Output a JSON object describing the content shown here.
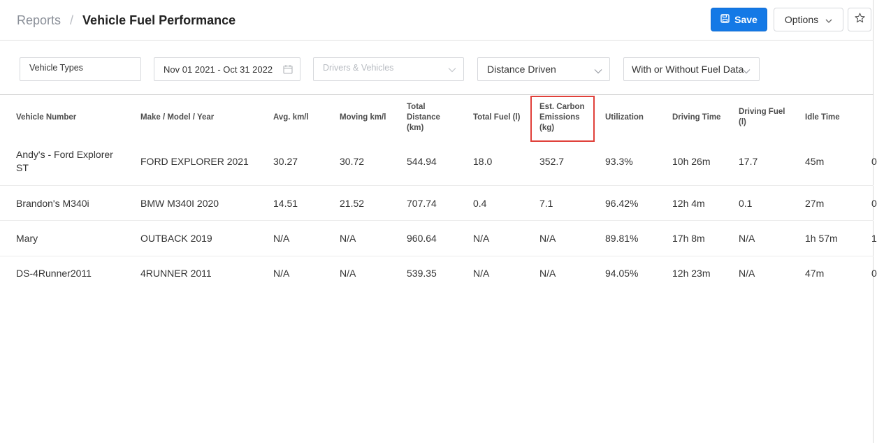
{
  "header": {
    "breadcrumb_parent": "Reports",
    "breadcrumb_separator": "/",
    "title": "Vehicle Fuel Performance",
    "save_label": "Save",
    "options_label": "Options"
  },
  "filters": {
    "vehicle_types": "Vehicle Types",
    "date_range": "Nov 01 2021 - Oct 31 2022",
    "drivers_vehicles_placeholder": "Drivers & Vehicles",
    "distance": "Distance Driven",
    "fuel_data": "With or Without Fuel Data"
  },
  "table": {
    "columns": [
      [
        "Vehicle Number"
      ],
      [
        "Make / Model / Year"
      ],
      [
        "Avg. km/l"
      ],
      [
        "Moving km/l"
      ],
      [
        "Total",
        "Distance",
        "(km)"
      ],
      [
        "Total Fuel (l)"
      ],
      [
        "Est. Carbon",
        "Emissions",
        "(kg)"
      ],
      [
        "Utilization"
      ],
      [
        "Driving Time"
      ],
      [
        "Driving Fuel",
        "(l)"
      ],
      [
        "Idle Time"
      ],
      [
        ""
      ]
    ],
    "rows": [
      {
        "vehicle": [
          "Andy's - Ford Explorer",
          "ST"
        ],
        "make": "FORD EXPLORER 2021",
        "avg": "30.27",
        "moving": "30.72",
        "distance": "544.94",
        "fuel": "18.0",
        "carbon": "352.7",
        "util": "93.3%",
        "driving_time": "10h 26m",
        "driving_fuel": "17.7",
        "idle": "45m",
        "extra": "0"
      },
      {
        "vehicle": [
          "Brandon's M340i"
        ],
        "make": "BMW M340I 2020",
        "avg": "14.51",
        "moving": "21.52",
        "distance": "707.74",
        "fuel": "0.4",
        "carbon": "7.1",
        "util": "96.42%",
        "driving_time": "12h 4m",
        "driving_fuel": "0.1",
        "idle": "27m",
        "extra": "0"
      },
      {
        "vehicle": [
          "Mary"
        ],
        "make": "OUTBACK 2019",
        "avg": "N/A",
        "moving": "N/A",
        "distance": "960.64",
        "fuel": "N/A",
        "carbon": "N/A",
        "util": "89.81%",
        "driving_time": "17h 8m",
        "driving_fuel": "N/A",
        "idle": "1h 57m",
        "extra": "1"
      },
      {
        "vehicle": [
          "DS-4Runner2011"
        ],
        "make": "4RUNNER 2011",
        "avg": "N/A",
        "moving": "N/A",
        "distance": "539.35",
        "fuel": "N/A",
        "carbon": "N/A",
        "util": "94.05%",
        "driving_time": "12h 23m",
        "driving_fuel": "N/A",
        "idle": "47m",
        "extra": "0"
      }
    ]
  },
  "colors": {
    "primary": "#1479e6",
    "highlight": "#e0403a"
  },
  "icons": {
    "save": "floppy-disk-icon",
    "options": "chevron-down-icon",
    "favorite": "star-icon",
    "date": "calendar-icon"
  }
}
